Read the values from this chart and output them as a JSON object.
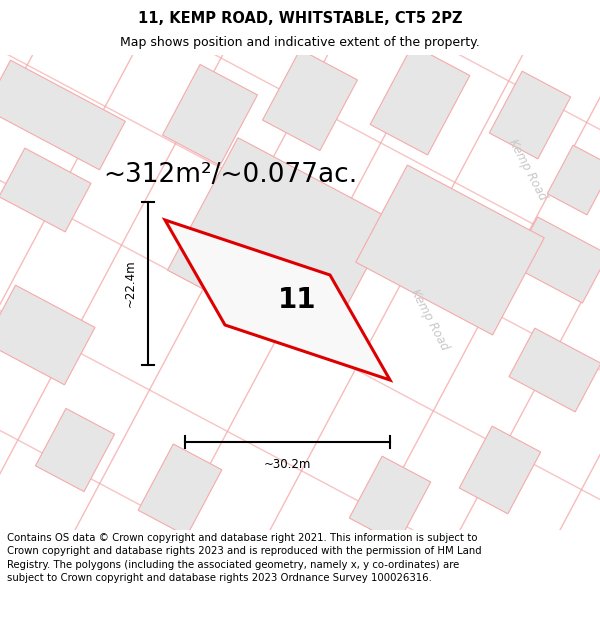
{
  "title_line1": "11, KEMP ROAD, WHITSTABLE, CT5 2PZ",
  "title_line2": "Map shows position and indicative extent of the property.",
  "area_text": "~312m²/~0.077ac.",
  "label_number": "11",
  "dim_width": "~30.2m",
  "dim_height": "~22.4m",
  "road_label_upper": "Kemp Road",
  "road_label_center": "Kemp Road",
  "footer_text": "Contains OS data © Crown copyright and database right 2021. This information is subject to Crown copyright and database rights 2023 and is reproduced with the permission of HM Land Registry. The polygons (including the associated geometry, namely x, y co-ordinates) are subject to Crown copyright and database rights 2023 Ordnance Survey 100026316.",
  "bg_color": "#ffffff",
  "map_bg": "#f8f8f8",
  "building_fill": "#e6e6e6",
  "building_edge": "#f5aaaa",
  "highlight_edge": "#dd0000",
  "highlight_fill": "#f8f8f8",
  "road_line_color": "#f5aaaa",
  "road_text_color": "#c8c8c8",
  "title_fontsize": 10.5,
  "subtitle_fontsize": 9.0,
  "area_fontsize": 19,
  "label_fontsize": 20,
  "footer_fontsize": 7.3,
  "road_lw": 1.0,
  "prop_lw": 2.2
}
